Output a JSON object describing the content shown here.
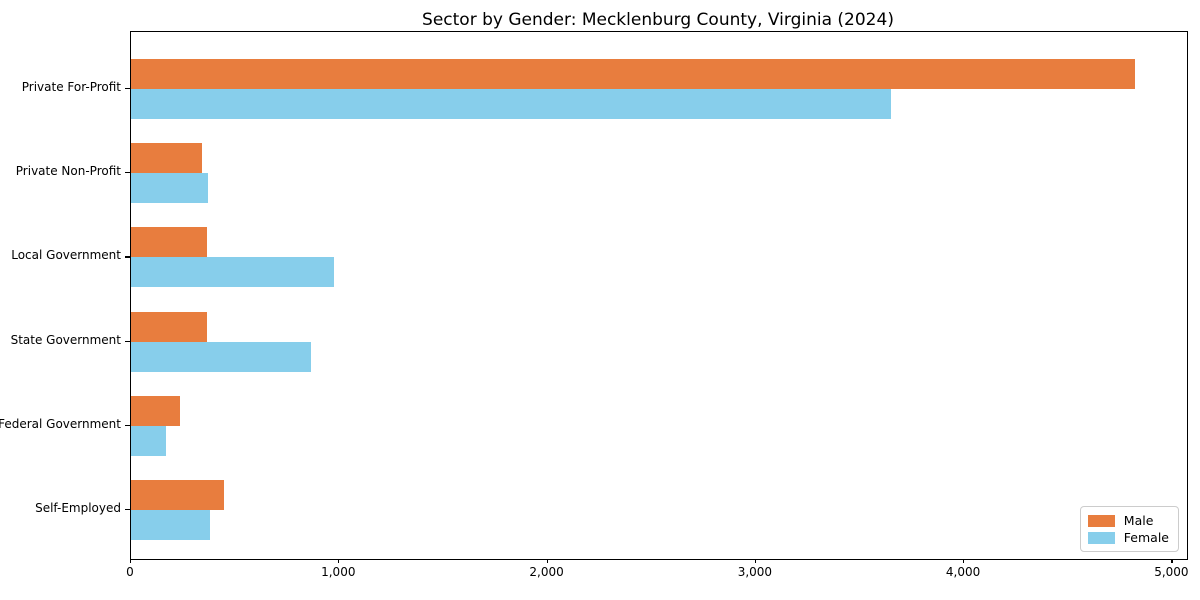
{
  "title": "Sector by Gender: Mecklenburg County, Virginia (2024)",
  "chart_data": {
    "type": "bar",
    "orientation": "horizontal",
    "title": "Sector by Gender: Mecklenburg County, Virginia (2024)",
    "categories": [
      "Private For-Profit",
      "Private Non-Profit",
      "Local Government",
      "State Government",
      "Federal Government",
      "Self-Employed"
    ],
    "series": [
      {
        "name": "Male",
        "color": "#E87D3E",
        "values": [
          4820,
          340,
          365,
          365,
          235,
          445
        ]
      },
      {
        "name": "Female",
        "color": "#87CEEB",
        "values": [
          3650,
          370,
          975,
          865,
          170,
          380
        ]
      }
    ],
    "xlabel": "",
    "ylabel": "",
    "xlim": [
      0,
      5070
    ],
    "x_ticks": [
      0,
      1000,
      2000,
      3000,
      4000,
      5000
    ],
    "x_tick_labels": [
      "0",
      "1,000",
      "2,000",
      "3,000",
      "4,000",
      "5,000"
    ],
    "grid": false,
    "legend": {
      "position": "lower right",
      "entries": [
        "Male",
        "Female"
      ]
    }
  }
}
